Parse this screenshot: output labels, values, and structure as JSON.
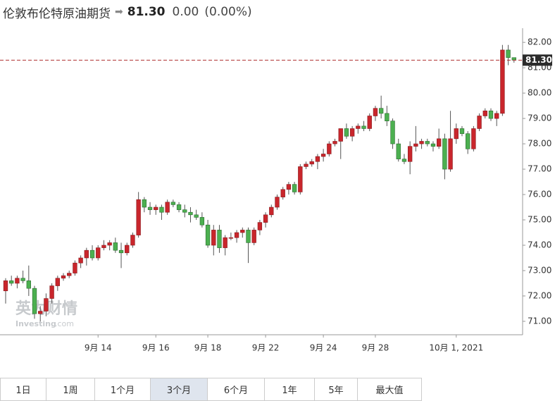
{
  "header": {
    "title": "伦敦布伦特原油期货",
    "price": "81.30",
    "change": "0.00",
    "change_pct": "(0.00%)"
  },
  "chart_data": {
    "type": "candlestick",
    "categories": [
      null,
      null,
      null,
      null,
      null,
      null,
      null,
      null,
      null,
      null,
      null,
      null,
      null,
      null,
      null,
      null,
      "9月 14",
      null,
      null,
      null,
      null,
      null,
      null,
      null,
      null,
      null,
      "9月 16",
      null,
      null,
      null,
      null,
      null,
      null,
      null,
      null,
      "9月 18",
      null,
      null,
      null,
      null,
      null,
      null,
      null,
      null,
      null,
      "9月 22",
      null,
      null,
      null,
      null,
      null,
      null,
      null,
      null,
      null,
      "9月 24",
      null,
      null,
      null,
      null,
      null,
      null,
      null,
      null,
      "9月 28",
      null,
      null,
      null,
      null,
      null,
      null,
      null,
      null,
      null,
      null,
      null,
      null,
      null,
      "10月 1, 2021",
      null,
      null,
      null,
      null,
      null,
      null,
      null,
      null,
      null,
      null
    ],
    "candles": [
      [
        72.2,
        72.7,
        71.7,
        72.6
      ],
      [
        72.6,
        72.8,
        72.4,
        72.5
      ],
      [
        72.5,
        72.8,
        72.3,
        72.7
      ],
      [
        72.7,
        73.0,
        72.5,
        72.6
      ],
      [
        72.6,
        73.2,
        72.0,
        72.3
      ],
      [
        72.3,
        72.4,
        71.1,
        71.3
      ],
      [
        71.3,
        71.6,
        71.0,
        71.4
      ],
      [
        71.4,
        72.1,
        71.2,
        71.9
      ],
      [
        71.9,
        72.5,
        71.7,
        72.4
      ],
      [
        72.4,
        72.8,
        72.2,
        72.7
      ],
      [
        72.7,
        72.9,
        72.6,
        72.8
      ],
      [
        72.8,
        73.0,
        72.7,
        72.9
      ],
      [
        72.9,
        73.4,
        72.8,
        73.3
      ],
      [
        73.3,
        73.6,
        73.1,
        73.5
      ],
      [
        73.5,
        73.9,
        73.2,
        73.8
      ],
      [
        73.8,
        74.0,
        73.4,
        73.5
      ],
      [
        73.5,
        74.0,
        73.4,
        73.9
      ],
      [
        73.9,
        74.2,
        73.8,
        74.0
      ],
      [
        74.0,
        74.2,
        73.8,
        74.1
      ],
      [
        74.1,
        74.3,
        73.7,
        73.8
      ],
      [
        73.8,
        74.1,
        73.1,
        73.7
      ],
      [
        73.7,
        74.1,
        73.6,
        74.0
      ],
      [
        74.0,
        74.5,
        73.9,
        74.4
      ],
      [
        74.4,
        76.1,
        74.3,
        75.8
      ],
      [
        75.8,
        75.9,
        75.3,
        75.5
      ],
      [
        75.5,
        75.7,
        75.2,
        75.4
      ],
      [
        75.4,
        75.6,
        75.2,
        75.5
      ],
      [
        75.5,
        75.6,
        75.0,
        75.3
      ],
      [
        75.3,
        75.8,
        75.2,
        75.7
      ],
      [
        75.7,
        75.8,
        75.5,
        75.6
      ],
      [
        75.6,
        75.7,
        75.3,
        75.4
      ],
      [
        75.4,
        75.6,
        75.1,
        75.3
      ],
      [
        75.3,
        75.5,
        74.9,
        75.2
      ],
      [
        75.2,
        75.4,
        75.0,
        75.1
      ],
      [
        75.1,
        75.3,
        74.7,
        74.8
      ],
      [
        74.8,
        75.0,
        73.9,
        74.0
      ],
      [
        74.0,
        74.8,
        73.6,
        74.6
      ],
      [
        74.6,
        74.8,
        73.7,
        73.9
      ],
      [
        73.9,
        74.4,
        73.6,
        74.3
      ],
      [
        74.3,
        74.5,
        74.2,
        74.3
      ],
      [
        74.3,
        74.6,
        74.1,
        74.5
      ],
      [
        74.5,
        74.7,
        74.3,
        74.6
      ],
      [
        74.6,
        74.7,
        73.3,
        74.1
      ],
      [
        74.1,
        74.7,
        74.0,
        74.6
      ],
      [
        74.6,
        75.0,
        74.4,
        74.9
      ],
      [
        74.9,
        75.3,
        74.7,
        75.2
      ],
      [
        75.2,
        75.6,
        75.1,
        75.5
      ],
      [
        75.5,
        76.0,
        75.4,
        75.9
      ],
      [
        75.9,
        76.3,
        75.8,
        76.2
      ],
      [
        76.2,
        76.5,
        76.0,
        76.4
      ],
      [
        76.4,
        76.5,
        76.0,
        76.1
      ],
      [
        76.1,
        77.2,
        76.0,
        77.1
      ],
      [
        77.1,
        77.3,
        77.0,
        77.2
      ],
      [
        77.2,
        77.4,
        77.1,
        77.3
      ],
      [
        77.3,
        77.6,
        77.0,
        77.5
      ],
      [
        77.5,
        77.8,
        77.3,
        77.6
      ],
      [
        77.6,
        78.1,
        77.5,
        78.0
      ],
      [
        78.0,
        78.2,
        77.9,
        78.1
      ],
      [
        78.1,
        78.6,
        77.4,
        78.6
      ],
      [
        78.6,
        78.8,
        78.2,
        78.3
      ],
      [
        78.3,
        78.7,
        78.1,
        78.6
      ],
      [
        78.6,
        78.8,
        78.4,
        78.7
      ],
      [
        78.7,
        78.9,
        78.5,
        78.6
      ],
      [
        78.6,
        79.2,
        78.5,
        79.1
      ],
      [
        79.1,
        79.5,
        78.9,
        79.4
      ],
      [
        79.4,
        79.9,
        79.0,
        79.2
      ],
      [
        79.2,
        79.5,
        78.7,
        78.9
      ],
      [
        78.9,
        79.0,
        77.8,
        78.0
      ],
      [
        78.0,
        78.2,
        77.3,
        77.4
      ],
      [
        77.4,
        77.6,
        77.2,
        77.3
      ],
      [
        77.3,
        78.1,
        76.8,
        77.9
      ],
      [
        77.9,
        78.7,
        77.7,
        78.0
      ],
      [
        78.0,
        78.2,
        77.8,
        78.1
      ],
      [
        78.1,
        78.2,
        77.9,
        78.0
      ],
      [
        78.0,
        78.1,
        77.7,
        77.9
      ],
      [
        77.9,
        78.6,
        77.8,
        78.2
      ],
      [
        78.2,
        78.4,
        76.6,
        77.0
      ],
      [
        77.0,
        79.3,
        76.9,
        78.2
      ],
      [
        78.2,
        78.8,
        78.0,
        78.6
      ],
      [
        78.6,
        78.7,
        78.3,
        78.4
      ],
      [
        78.4,
        78.5,
        77.6,
        77.8
      ],
      [
        77.8,
        78.7,
        77.7,
        78.6
      ],
      [
        78.6,
        79.2,
        78.5,
        79.1
      ],
      [
        79.1,
        79.4,
        79.0,
        79.3
      ],
      [
        79.3,
        79.4,
        78.9,
        79.0
      ],
      [
        79.0,
        79.3,
        78.7,
        79.2
      ],
      [
        79.2,
        81.9,
        79.1,
        81.7
      ],
      [
        81.7,
        81.9,
        81.1,
        81.4
      ],
      [
        81.4,
        81.4,
        81.2,
        81.3
      ]
    ],
    "up_color": "#c9262c",
    "down_color": "#4cb050",
    "ylim": [
      70.47,
      82.56
    ],
    "yticks": [
      {
        "value": 71,
        "label": "71.00"
      },
      {
        "value": 72,
        "label": "72.00"
      },
      {
        "value": 73,
        "label": "73.00"
      },
      {
        "value": 74,
        "label": "74.00"
      },
      {
        "value": 75,
        "label": "75.00"
      },
      {
        "value": 76,
        "label": "76.00"
      },
      {
        "value": 77,
        "label": "77.00"
      },
      {
        "value": 78,
        "label": "78.00"
      },
      {
        "value": 79,
        "label": "79.00"
      },
      {
        "value": 80,
        "label": "80.00"
      },
      {
        "value": 81,
        "label": "81.00"
      },
      {
        "value": 82,
        "label": "82.00"
      }
    ],
    "last_price": {
      "value": 81.3,
      "label": "81.30"
    },
    "watermark": {
      "brand": "英为财情",
      "site": "Investing",
      "domain": ".com"
    }
  },
  "ranges": [
    {
      "label": "1日",
      "selected": false
    },
    {
      "label": "1周",
      "selected": false
    },
    {
      "label": "1个月",
      "selected": false
    },
    {
      "label": "3个月",
      "selected": true
    },
    {
      "label": "6个月",
      "selected": false
    },
    {
      "label": "1年",
      "selected": false
    },
    {
      "label": "5年",
      "selected": false
    },
    {
      "label": "最大值",
      "selected": false
    }
  ]
}
